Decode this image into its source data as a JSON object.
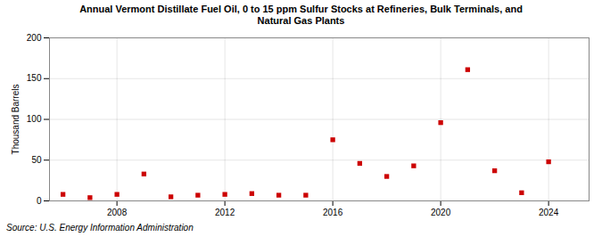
{
  "chart_data": {
    "type": "scatter",
    "title": "Annual Vermont Distillate Fuel Oil, 0 to 15 ppm Sulfur Stocks at Refineries, Bulk Terminals, and\nNatural Gas Plants",
    "ylabel": "Thousand Barrels",
    "source": "Source: U.S. Energy Information Administration",
    "x": [
      2006,
      2007,
      2008,
      2009,
      2010,
      2011,
      2012,
      2013,
      2014,
      2015,
      2016,
      2017,
      2018,
      2019,
      2020,
      2021,
      2022,
      2023,
      2024
    ],
    "values": [
      8,
      4,
      8,
      33,
      5,
      7,
      8,
      9,
      7,
      7,
      75,
      46,
      30,
      43,
      96,
      161,
      37,
      10,
      48
    ],
    "color": "#cc0000",
    "marker": "square",
    "xlim": [
      2005.5,
      2025.5
    ],
    "ylim": [
      0,
      200
    ],
    "xticks": [
      2008,
      2012,
      2016,
      2020,
      2024
    ],
    "yticks": [
      0,
      50,
      100,
      150,
      200
    ],
    "grid": true
  }
}
